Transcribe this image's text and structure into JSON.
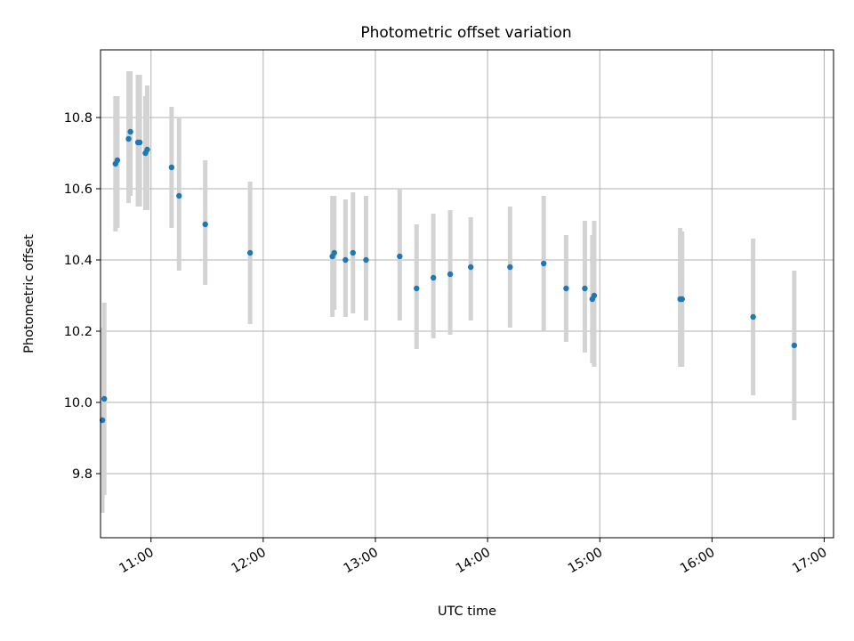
{
  "chart_data": {
    "type": "scatter",
    "title": "Photometric offset variation",
    "xlabel": "UTC time",
    "ylabel": "Photometric offset",
    "x_unit": "UTC time of day (HH:MM)",
    "xlim": [
      "10:33",
      "17:05"
    ],
    "ylim": [
      9.62,
      10.99
    ],
    "xticks": [
      "11:00",
      "12:00",
      "13:00",
      "14:00",
      "15:00",
      "16:00",
      "17:00"
    ],
    "yticks": [
      9.8,
      10.0,
      10.2,
      10.4,
      10.6,
      10.8
    ],
    "ytick_labels": [
      "9.8",
      "10.0",
      "10.2",
      "10.4",
      "10.6",
      "10.8"
    ],
    "grid": true,
    "legend": "none",
    "colors": {
      "point": "#1f77b4",
      "errorbar": "#d3d3d3",
      "grid": "#b0b0b0"
    },
    "series": [
      {
        "points": [
          {
            "time": "10:34",
            "y": 9.95,
            "lo": 9.69,
            "hi": 10.21
          },
          {
            "time": "10:35",
            "y": 10.01,
            "lo": 9.74,
            "hi": 10.28
          },
          {
            "time": "10:41",
            "y": 10.67,
            "lo": 10.48,
            "hi": 10.86
          },
          {
            "time": "10:42",
            "y": 10.68,
            "lo": 10.49,
            "hi": 10.86
          },
          {
            "time": "10:48",
            "y": 10.74,
            "lo": 10.56,
            "hi": 10.93
          },
          {
            "time": "10:49",
            "y": 10.76,
            "lo": 10.58,
            "hi": 10.93
          },
          {
            "time": "10:53",
            "y": 10.73,
            "lo": 10.55,
            "hi": 10.92
          },
          {
            "time": "10:54",
            "y": 10.73,
            "lo": 10.55,
            "hi": 10.92
          },
          {
            "time": "10:57",
            "y": 10.7,
            "lo": 10.54,
            "hi": 10.86
          },
          {
            "time": "10:58",
            "y": 10.71,
            "lo": 10.54,
            "hi": 10.89
          },
          {
            "time": "11:11",
            "y": 10.66,
            "lo": 10.49,
            "hi": 10.83
          },
          {
            "time": "11:15",
            "y": 10.58,
            "lo": 10.37,
            "hi": 10.8
          },
          {
            "time": "11:29",
            "y": 10.5,
            "lo": 10.33,
            "hi": 10.68
          },
          {
            "time": "11:53",
            "y": 10.42,
            "lo": 10.22,
            "hi": 10.62
          },
          {
            "time": "12:37",
            "y": 10.41,
            "lo": 10.24,
            "hi": 10.58
          },
          {
            "time": "12:38",
            "y": 10.42,
            "lo": 10.26,
            "hi": 10.58
          },
          {
            "time": "12:44",
            "y": 10.4,
            "lo": 10.24,
            "hi": 10.57
          },
          {
            "time": "12:48",
            "y": 10.42,
            "lo": 10.25,
            "hi": 10.59
          },
          {
            "time": "12:55",
            "y": 10.4,
            "lo": 10.23,
            "hi": 10.58
          },
          {
            "time": "13:13",
            "y": 10.41,
            "lo": 10.23,
            "hi": 10.6
          },
          {
            "time": "13:22",
            "y": 10.32,
            "lo": 10.15,
            "hi": 10.5
          },
          {
            "time": "13:31",
            "y": 10.35,
            "lo": 10.18,
            "hi": 10.53
          },
          {
            "time": "13:40",
            "y": 10.36,
            "lo": 10.19,
            "hi": 10.54
          },
          {
            "time": "13:51",
            "y": 10.38,
            "lo": 10.23,
            "hi": 10.52
          },
          {
            "time": "14:12",
            "y": 10.38,
            "lo": 10.21,
            "hi": 10.55
          },
          {
            "time": "14:30",
            "y": 10.39,
            "lo": 10.2,
            "hi": 10.58
          },
          {
            "time": "14:42",
            "y": 10.32,
            "lo": 10.17,
            "hi": 10.47
          },
          {
            "time": "14:52",
            "y": 10.32,
            "lo": 10.14,
            "hi": 10.51
          },
          {
            "time": "14:56",
            "y": 10.29,
            "lo": 10.11,
            "hi": 10.47
          },
          {
            "time": "14:57",
            "y": 10.3,
            "lo": 10.1,
            "hi": 10.51
          },
          {
            "time": "15:43",
            "y": 10.29,
            "lo": 10.1,
            "hi": 10.49
          },
          {
            "time": "15:44",
            "y": 10.29,
            "lo": 10.1,
            "hi": 10.48
          },
          {
            "time": "16:22",
            "y": 10.24,
            "lo": 10.02,
            "hi": 10.46
          },
          {
            "time": "16:44",
            "y": 10.16,
            "lo": 9.95,
            "hi": 10.37
          }
        ]
      }
    ]
  }
}
